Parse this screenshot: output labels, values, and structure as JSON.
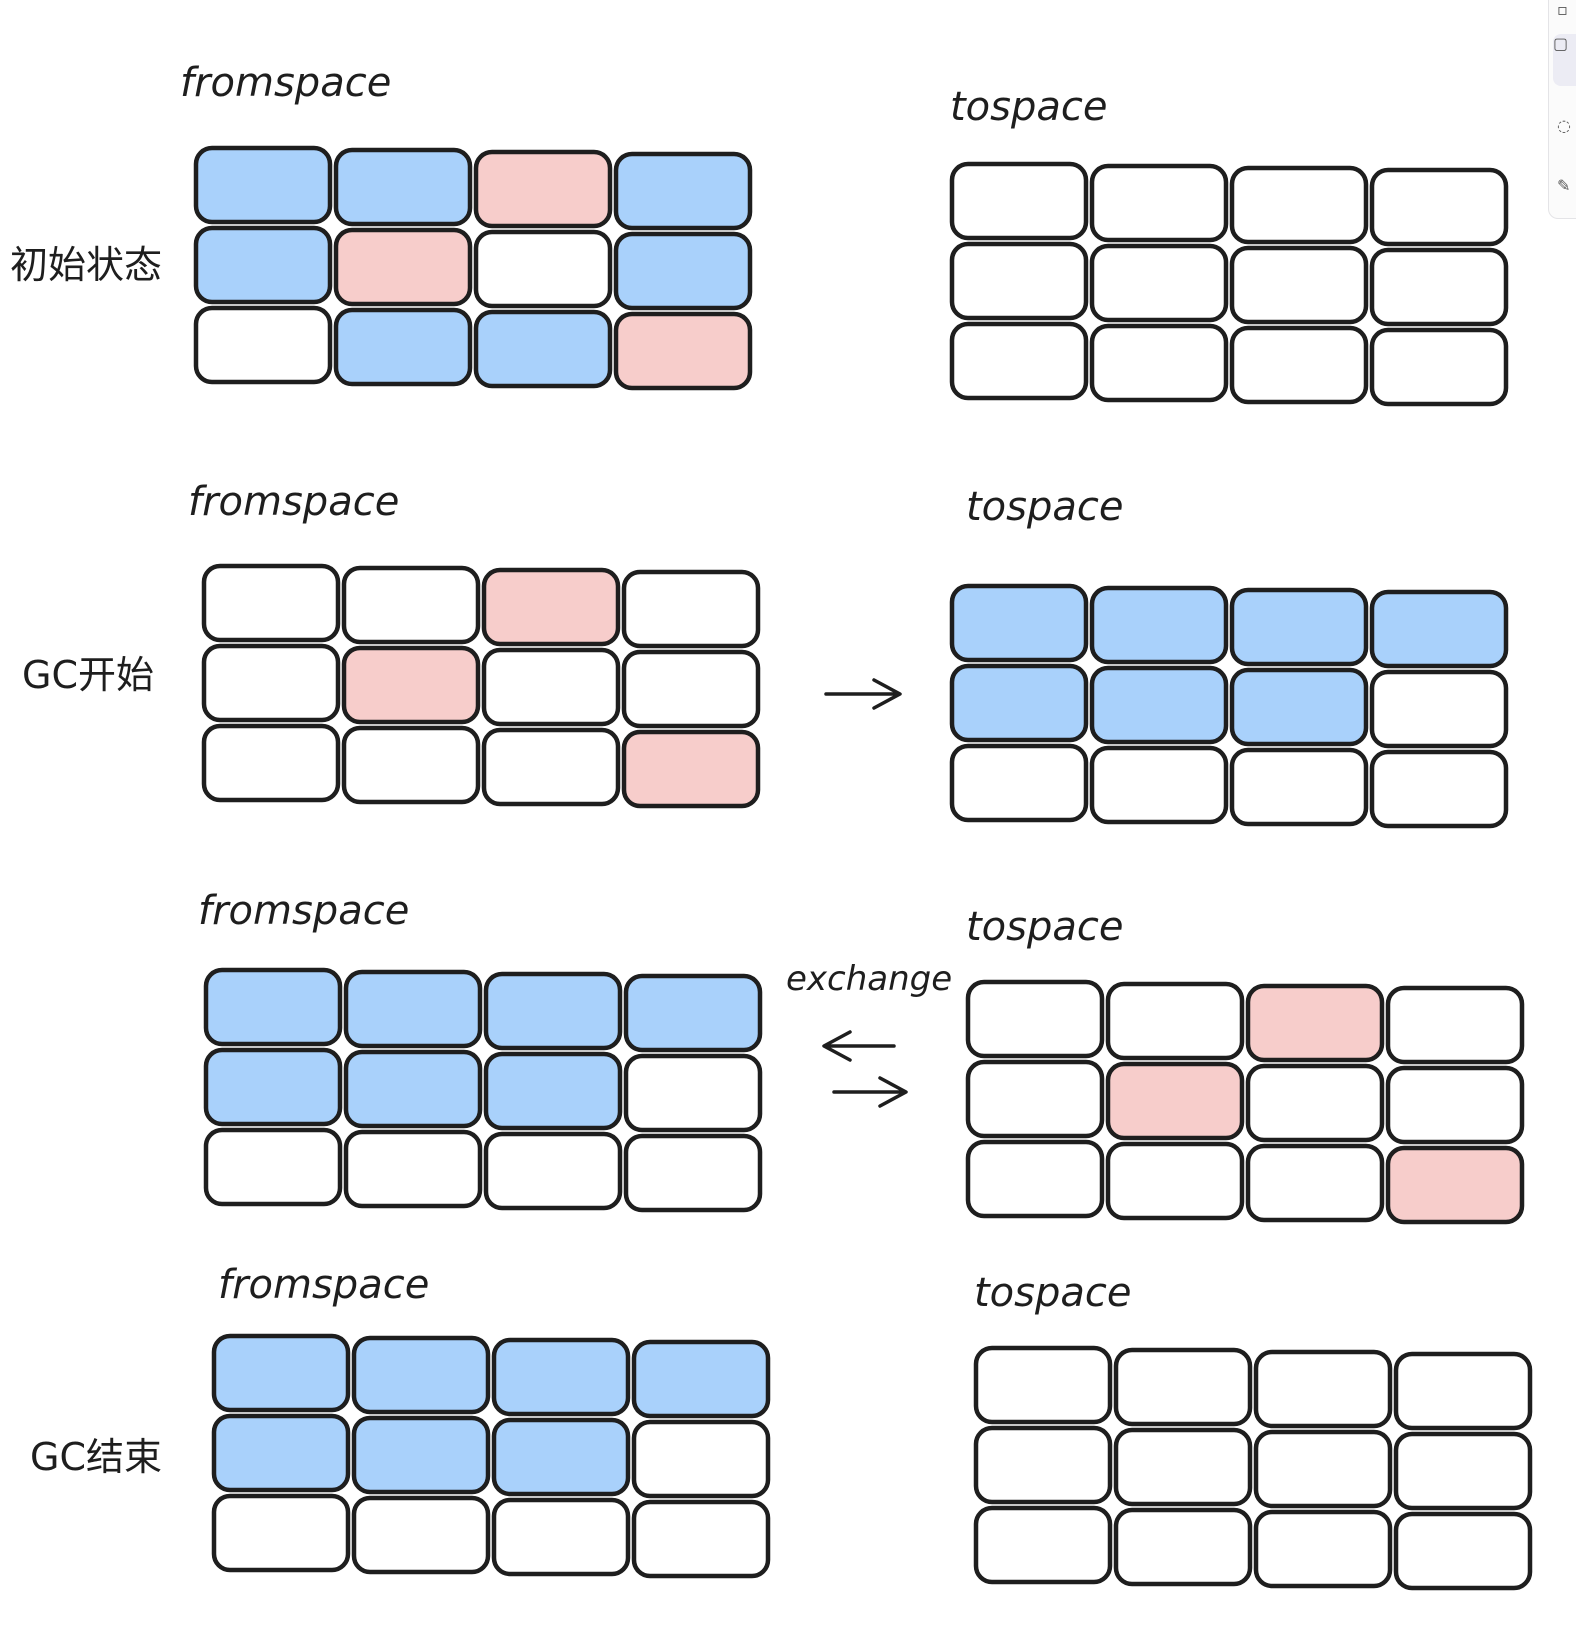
{
  "colors": {
    "blue": "#a9d1fb",
    "pink": "#f7cdcb",
    "empty": "#ffffff",
    "stroke": "#1e1e1e"
  },
  "legend_codes": {
    "B": "blue",
    "P": "pink",
    "W": "empty"
  },
  "stages": [
    {
      "label": "初始状态",
      "from": {
        "title": "fromspace",
        "grid": [
          [
            "B",
            "B",
            "P",
            "B"
          ],
          [
            "B",
            "P",
            "W",
            "B"
          ],
          [
            "W",
            "B",
            "B",
            "P"
          ]
        ]
      },
      "to": {
        "title": "tospace",
        "grid": [
          [
            "W",
            "W",
            "W",
            "W"
          ],
          [
            "W",
            "W",
            "W",
            "W"
          ],
          [
            "W",
            "W",
            "W",
            "W"
          ]
        ]
      },
      "connector": null
    },
    {
      "label": "GC开始",
      "from": {
        "title": "fromspace",
        "grid": [
          [
            "W",
            "W",
            "P",
            "W"
          ],
          [
            "W",
            "P",
            "W",
            "W"
          ],
          [
            "W",
            "W",
            "W",
            "P"
          ]
        ]
      },
      "to": {
        "title": "tospace",
        "grid": [
          [
            "B",
            "B",
            "B",
            "B"
          ],
          [
            "B",
            "B",
            "B",
            "W"
          ],
          [
            "W",
            "W",
            "W",
            "W"
          ]
        ]
      },
      "connector": {
        "type": "arrow-right"
      }
    },
    {
      "label": "",
      "from": {
        "title": "fromspace",
        "grid": [
          [
            "B",
            "B",
            "B",
            "B"
          ],
          [
            "B",
            "B",
            "B",
            "W"
          ],
          [
            "W",
            "W",
            "W",
            "W"
          ]
        ]
      },
      "to": {
        "title": "tospace",
        "grid": [
          [
            "W",
            "W",
            "P",
            "W"
          ],
          [
            "W",
            "P",
            "W",
            "W"
          ],
          [
            "W",
            "W",
            "W",
            "P"
          ]
        ]
      },
      "connector": {
        "type": "exchange",
        "label": "exchange"
      }
    },
    {
      "label": "GC结束",
      "from": {
        "title": "fromspace",
        "grid": [
          [
            "B",
            "B",
            "B",
            "B"
          ],
          [
            "B",
            "B",
            "B",
            "W"
          ],
          [
            "W",
            "W",
            "W",
            "W"
          ]
        ]
      },
      "to": {
        "title": "tospace",
        "grid": [
          [
            "W",
            "W",
            "W",
            "W"
          ],
          [
            "W",
            "W",
            "W",
            "W"
          ],
          [
            "W",
            "W",
            "W",
            "W"
          ]
        ]
      },
      "connector": null
    }
  ],
  "toolbar": {
    "icons": [
      "page-icon",
      "square-icon",
      "circle-icon",
      "pen-icon"
    ]
  }
}
